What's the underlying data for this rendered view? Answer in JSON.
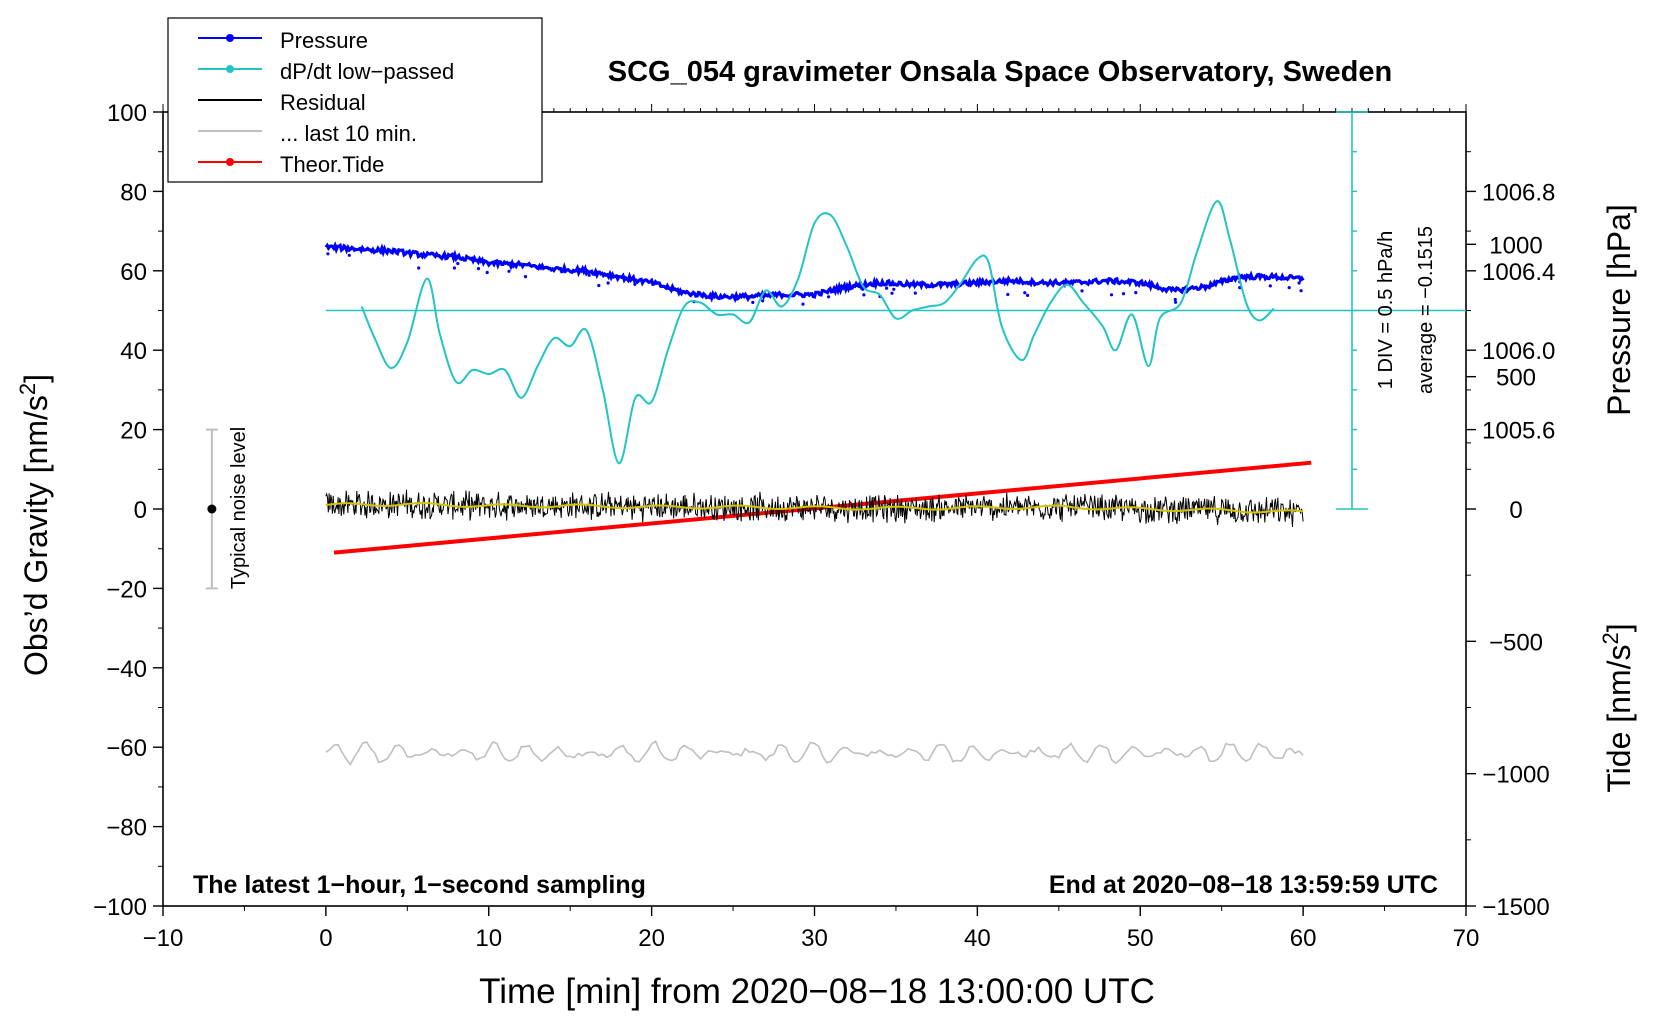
{
  "chart_data": {
    "type": "line",
    "title": "SCG_054 gravimeter Onsala Space Observatory, Sweden",
    "xlabel": "Time [min] from 2020−08−18 13:00:00 UTC",
    "ylabel": "Obs’d Gravity [nm/s²]",
    "ylabel_parts": {
      "text": "Obs’d Gravity [nm/s",
      "sup": "2",
      "tail": "]"
    },
    "y2label": "Pressure [hPa]",
    "y3label_parts": {
      "text": "Tide [nm/s",
      "sup": "2",
      "tail": "]"
    },
    "xlim": [
      -10,
      70
    ],
    "ylim": [
      -100,
      100
    ],
    "x_ticks": [
      "−10",
      "0",
      "10",
      "20",
      "30",
      "40",
      "50",
      "60",
      "70"
    ],
    "x_tick_values": [
      -10,
      0,
      10,
      20,
      30,
      40,
      50,
      60,
      70
    ],
    "y_ticks": [
      "100",
      "80",
      "60",
      "40",
      "20",
      "0",
      "−20",
      "−40",
      "−60",
      "−80",
      "−100"
    ],
    "y_tick_values": [
      100,
      80,
      60,
      40,
      20,
      0,
      -20,
      -40,
      -60,
      -80,
      -100
    ],
    "pressure_axis": {
      "ticks": [
        "1006.8",
        "1006.4",
        "1006.0",
        "1005.6"
      ],
      "values": [
        1006.8,
        1006.4,
        1006.0,
        1005.6
      ],
      "gravity_equivalent": [
        80,
        60,
        40,
        20
      ]
    },
    "tide_axis": {
      "ticks": [
        "1000",
        "500",
        "0",
        "−500",
        "−1000",
        "−1500"
      ],
      "values": [
        1000,
        500,
        0,
        -500,
        -1000,
        -1500
      ],
      "ylim": [
        -1500,
        1500
      ]
    },
    "legend": {
      "position": "top-left",
      "entries": [
        {
          "label": "Pressure",
          "color": "#0000ff",
          "marker": true
        },
        {
          "label": "dP/dt low−passed",
          "color": "#22c4c4",
          "marker": true
        },
        {
          "label": "Residual",
          "color": "#000000",
          "marker": false
        },
        {
          "label": "... last 10 min.",
          "color": "#bfbfbf",
          "marker": false
        },
        {
          "label": "Theor.Tide",
          "color": "#ff0000",
          "marker": true
        }
      ]
    },
    "annotations": {
      "left_bottom": "The latest 1−hour, 1−second sampling",
      "right_bottom": "End at 2020−08−18 13:59:59 UTC",
      "div_label": "1 DIV = 0.5 hPa/h",
      "average_label": "average = −0.1515",
      "noise_label": "Typical noise level"
    },
    "noise_bar": {
      "x": -7,
      "center": 0,
      "low": -20,
      "high": 20
    },
    "dpdt_scale": {
      "x": 63,
      "baseline": 50,
      "bar_low": 0,
      "bar_high": 100
    },
    "series": [
      {
        "name": "Pressure",
        "color": "#0000ff",
        "x": [
          0,
          2,
          4,
          6,
          8,
          10,
          12,
          14,
          16,
          18,
          20,
          22,
          24,
          26,
          28,
          30,
          32,
          34,
          36,
          38,
          40,
          42,
          44,
          46,
          48,
          50,
          52,
          54,
          56,
          58,
          60
        ],
        "y": [
          66,
          65.5,
          65,
          64,
          63.5,
          62,
          61.5,
          60.5,
          60,
          58.5,
          57,
          54.5,
          53.5,
          53.5,
          54,
          54,
          56,
          57,
          56.5,
          56.5,
          57,
          57.5,
          57,
          57,
          57.5,
          57,
          55,
          56,
          58.5,
          58.5,
          58
        ]
      },
      {
        "name": "dP/dt low−passed",
        "color": "#22c4c4",
        "x": [
          2.2,
          3,
          4,
          5,
          6.2,
          7,
          8,
          9,
          10,
          11,
          12,
          13,
          14,
          15,
          16,
          17,
          18,
          19,
          20,
          21,
          22,
          23,
          24,
          25,
          26,
          27,
          28,
          29,
          30,
          31,
          32,
          33,
          34,
          35,
          36,
          37,
          38,
          39,
          40,
          40.7,
          41.5,
          42.7,
          43.5,
          44.5,
          45.5,
          46.5,
          47.7,
          48.5,
          49.5,
          50.5,
          51.2,
          52.5,
          53.5,
          54.7,
          55.5,
          56.5,
          57.3,
          58.2
        ],
        "y": [
          51,
          43,
          35.5,
          42,
          58,
          44,
          32,
          35,
          34,
          35,
          28,
          36,
          43,
          41,
          45,
          30,
          11.5,
          28,
          27,
          40,
          51,
          52,
          49,
          49,
          47,
          55,
          51,
          58,
          72,
          74,
          66,
          56,
          54,
          48,
          50,
          51,
          52,
          57,
          63,
          62,
          46,
          37.5,
          44,
          52,
          56.5,
          52,
          46,
          40,
          49,
          36,
          48,
          52,
          65,
          77.5,
          68,
          52,
          47.5,
          50.5
        ]
      },
      {
        "name": "Residual",
        "color": "#000000",
        "x": [
          0,
          5,
          10,
          15,
          20,
          25,
          30,
          35,
          40,
          45,
          50,
          55,
          60
        ],
        "y": [
          1,
          1.2,
          0.8,
          0.8,
          0.5,
          0.5,
          0.3,
          0.2,
          0.3,
          0.5,
          0,
          -0.3,
          -0.8
        ],
        "noise_amplitude": 4
      },
      {
        "name": "... last 10 min.",
        "color": "#bfbfbf",
        "x": [
          0,
          10,
          20,
          30,
          40,
          50,
          60
        ],
        "y": [
          -61.5,
          -61.5,
          -61.5,
          -61.5,
          -61.5,
          -61.5,
          -61.5
        ],
        "oscillation_amplitude": 2.5
      },
      {
        "name": "Theor.Tide",
        "color": "#ff0000",
        "x": [
          0.5,
          60.5
        ],
        "y_tide": [
          -165,
          175
        ]
      }
    ]
  }
}
